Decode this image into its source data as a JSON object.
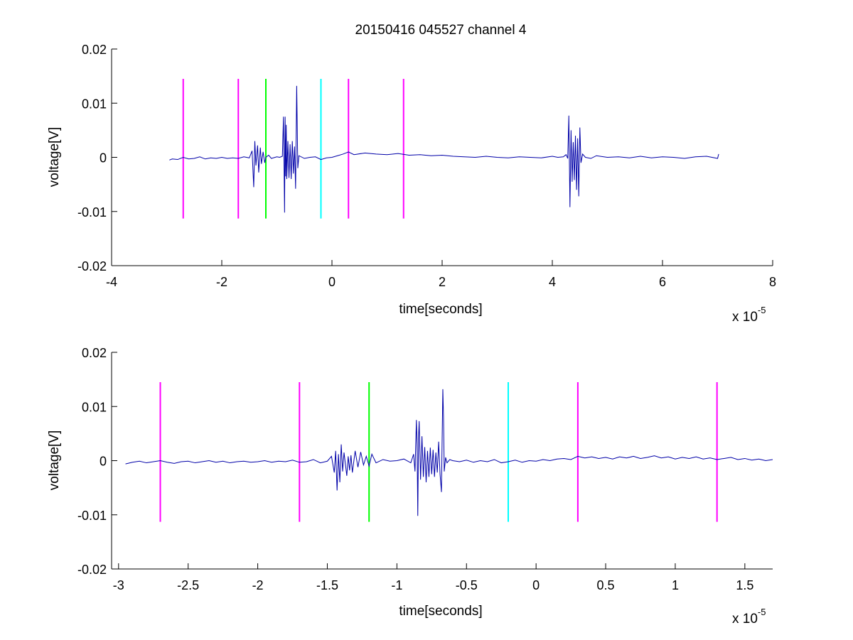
{
  "figure": {
    "title": "20150416 045527 channel 4"
  },
  "chart_data": [
    {
      "type": "line",
      "title": "20150416 045527 channel 4",
      "xlabel": "time[seconds]",
      "ylabel": "voltage[V]",
      "x_exponent_label": "x 10",
      "x_exponent": "-5",
      "xlim": [
        -4,
        8
      ],
      "ylim": [
        -0.02,
        0.02
      ],
      "x_unit_scale": "1e-5",
      "xticks": [
        -4,
        -2,
        0,
        2,
        4,
        6,
        8
      ],
      "xtick_labels": [
        "-4",
        "-2",
        "0",
        "2",
        "4",
        "6",
        "8"
      ],
      "yticks": [
        0.02,
        0.01,
        0,
        -0.01,
        -0.02
      ],
      "ytick_labels": [
        "0.02",
        "0.01",
        "0",
        "-0.01",
        "-0.02"
      ],
      "series": [
        {
          "color": "#0000a8",
          "x": [
            -2.95,
            -2.9,
            -2.8,
            -2.7,
            -2.6,
            -2.5,
            -2.4,
            -2.3,
            -2.2,
            -2.1,
            -2.0,
            -1.9,
            -1.8,
            -1.7,
            -1.6,
            -1.5,
            -1.45,
            -1.42,
            -1.4,
            -1.38,
            -1.35,
            -1.33,
            -1.3,
            -1.28,
            -1.25,
            -1.22,
            -1.2,
            -1.15,
            -1.1,
            -1.0,
            -0.95,
            -0.9,
            -0.88,
            -0.86,
            -0.85,
            -0.84,
            -0.83,
            -0.82,
            -0.8,
            -0.78,
            -0.76,
            -0.74,
            -0.72,
            -0.7,
            -0.68,
            -0.66,
            -0.64,
            -0.62,
            -0.6,
            -0.5,
            -0.4,
            -0.3,
            -0.2,
            -0.1,
            0.0,
            0.1,
            0.2,
            0.3,
            0.4,
            0.6,
            0.8,
            1.0,
            1.2,
            1.4,
            1.6,
            1.8,
            2.0,
            2.2,
            2.4,
            2.6,
            2.8,
            3.0,
            3.2,
            3.4,
            3.6,
            3.8,
            4.0,
            4.1,
            4.2,
            4.25,
            4.28,
            4.3,
            4.32,
            4.34,
            4.36,
            4.38,
            4.4,
            4.42,
            4.44,
            4.46,
            4.48,
            4.5,
            4.52,
            4.55,
            4.6,
            4.7,
            4.8,
            5.0,
            5.2,
            5.4,
            5.6,
            5.8,
            6.0,
            6.2,
            6.4,
            6.6,
            6.8,
            7.0,
            7.02
          ],
          "y": [
            -0.0005,
            -0.0003,
            -0.0004,
            0.0,
            -0.0003,
            -0.0002,
            0.0001,
            -0.0003,
            -0.0001,
            -0.0002,
            0.0,
            -0.0002,
            -0.0001,
            -0.0002,
            0.0001,
            -0.0001,
            0.0012,
            -0.0055,
            0.003,
            -0.0015,
            0.0022,
            -0.0028,
            0.0018,
            -0.0012,
            0.001,
            -0.001,
            0.0,
            0.0004,
            -0.0002,
            0.0001,
            0.0,
            0.0002,
            0.0075,
            -0.0102,
            0.0075,
            -0.0035,
            0.006,
            -0.004,
            0.003,
            -0.0038,
            0.0024,
            -0.004,
            0.003,
            -0.003,
            0.002,
            -0.0058,
            0.0132,
            -0.002,
            0.0003,
            -0.0002,
            0.0,
            0.0001,
            -0.0004,
            -0.0001,
            0.0,
            0.0003,
            0.0006,
            0.001,
            0.0005,
            0.0008,
            0.0006,
            0.0005,
            0.0007,
            0.0004,
            0.0005,
            0.0003,
            0.0004,
            0.0002,
            0.0001,
            0.0,
            0.0002,
            0.0,
            -0.0001,
            0.0001,
            0.0,
            -0.0001,
            0.0002,
            0.0,
            0.0001,
            0.0005,
            -0.0002,
            0.0077,
            -0.0092,
            0.005,
            -0.0045,
            0.0028,
            -0.0042,
            0.004,
            -0.006,
            0.0035,
            -0.0072,
            0.0055,
            -0.001,
            0.0006,
            0.0,
            -0.0002,
            0.0003,
            0.0,
            0.0001,
            -0.0001,
            0.0002,
            -0.0001,
            0.0001,
            0.0,
            -0.0002,
            0.0001,
            0.0002,
            -0.0002,
            0.0006
          ]
        }
      ],
      "vlines": [
        {
          "x": -2.7,
          "color": "#ff00ff"
        },
        {
          "x": -1.7,
          "color": "#ff00ff"
        },
        {
          "x": -1.2,
          "color": "#00ff00"
        },
        {
          "x": -0.2,
          "color": "#00ffff"
        },
        {
          "x": 0.3,
          "color": "#ff00ff"
        },
        {
          "x": 1.3,
          "color": "#ff00ff"
        }
      ],
      "vline_range": [
        -0.0113,
        0.0145
      ]
    },
    {
      "type": "line",
      "title": "",
      "xlabel": "time[seconds]",
      "ylabel": "voltage[V]",
      "x_exponent_label": "x 10",
      "x_exponent": "-5",
      "xlim": [
        -3.05,
        1.7
      ],
      "ylim": [
        -0.02,
        0.02
      ],
      "x_unit_scale": "1e-5",
      "xticks": [
        -3,
        -2.5,
        -2,
        -1.5,
        -1,
        -0.5,
        0,
        0.5,
        1,
        1.5
      ],
      "xtick_labels": [
        "-3",
        "-2.5",
        "-2",
        "-1.5",
        "-1",
        "-0.5",
        "0",
        "0.5",
        "1",
        "1.5"
      ],
      "yticks": [
        0.02,
        0.01,
        0,
        -0.01,
        -0.02
      ],
      "ytick_labels": [
        "0.02",
        "0.01",
        "0",
        "-0.01",
        "-0.02"
      ],
      "series": [
        {
          "color": "#0000a8",
          "x": [
            -2.95,
            -2.9,
            -2.85,
            -2.8,
            -2.75,
            -2.7,
            -2.65,
            -2.6,
            -2.55,
            -2.5,
            -2.45,
            -2.4,
            -2.35,
            -2.3,
            -2.25,
            -2.2,
            -2.15,
            -2.1,
            -2.05,
            -2.0,
            -1.95,
            -1.9,
            -1.85,
            -1.8,
            -1.75,
            -1.7,
            -1.65,
            -1.6,
            -1.55,
            -1.5,
            -1.47,
            -1.45,
            -1.44,
            -1.43,
            -1.42,
            -1.41,
            -1.4,
            -1.39,
            -1.38,
            -1.36,
            -1.35,
            -1.34,
            -1.33,
            -1.32,
            -1.3,
            -1.28,
            -1.26,
            -1.24,
            -1.22,
            -1.2,
            -1.18,
            -1.15,
            -1.1,
            -1.05,
            -1.0,
            -0.95,
            -0.9,
            -0.88,
            -0.87,
            -0.86,
            -0.855,
            -0.85,
            -0.845,
            -0.84,
            -0.83,
            -0.82,
            -0.81,
            -0.8,
            -0.79,
            -0.78,
            -0.77,
            -0.76,
            -0.75,
            -0.74,
            -0.73,
            -0.72,
            -0.71,
            -0.7,
            -0.69,
            -0.68,
            -0.675,
            -0.67,
            -0.665,
            -0.66,
            -0.65,
            -0.64,
            -0.62,
            -0.6,
            -0.55,
            -0.5,
            -0.45,
            -0.4,
            -0.35,
            -0.3,
            -0.25,
            -0.2,
            -0.15,
            -0.1,
            -0.05,
            0.0,
            0.05,
            0.1,
            0.15,
            0.2,
            0.25,
            0.3,
            0.35,
            0.4,
            0.45,
            0.5,
            0.55,
            0.6,
            0.65,
            0.7,
            0.75,
            0.8,
            0.85,
            0.9,
            0.95,
            1.0,
            1.05,
            1.1,
            1.15,
            1.2,
            1.25,
            1.3,
            1.35,
            1.4,
            1.45,
            1.5,
            1.55,
            1.6,
            1.65,
            1.7
          ],
          "y": [
            -0.0006,
            -0.0003,
            -0.0001,
            -0.0004,
            -0.0002,
            0.0,
            -0.0003,
            -0.0005,
            -0.0002,
            -0.0001,
            -0.0004,
            -0.0002,
            0.0,
            -0.0003,
            -0.0001,
            -0.0004,
            -0.0002,
            -0.0001,
            -0.0003,
            -0.0002,
            0.0,
            -0.0003,
            -0.0001,
            -0.0002,
            0.0001,
            -0.0003,
            -0.0002,
            0.0002,
            -0.0004,
            -0.0001,
            0.0008,
            -0.0022,
            0.0018,
            -0.0055,
            0.0012,
            -0.004,
            0.003,
            -0.002,
            0.0015,
            -0.0028,
            0.0008,
            -0.0018,
            0.001,
            -0.0022,
            0.0018,
            -0.0012,
            0.0016,
            -0.0008,
            0.0008,
            -0.001,
            0.0012,
            -0.0004,
            0.0002,
            -0.0001,
            0.0,
            0.0003,
            -0.0004,
            0.0012,
            -0.002,
            0.0075,
            0.003,
            -0.0102,
            0.004,
            0.0073,
            -0.0035,
            0.0045,
            -0.003,
            0.0025,
            -0.004,
            0.0018,
            -0.003,
            0.0024,
            -0.0025,
            0.002,
            -0.003,
            0.0015,
            -0.0022,
            0.0035,
            -0.0025,
            -0.0058,
            0.004,
            0.0132,
            0.008,
            -0.002,
            0.0006,
            -0.0004,
            0.0002,
            0.0,
            -0.0002,
            0.0001,
            -0.0003,
            0.0,
            -0.0002,
            0.0002,
            -0.0004,
            -0.0002,
            0.0001,
            -0.0003,
            0.0,
            -0.0001,
            0.0002,
            0.0,
            0.0003,
            0.0004,
            0.0002,
            0.0008,
            0.0005,
            0.0007,
            0.0004,
            0.0006,
            0.0003,
            0.0007,
            0.0005,
            0.0008,
            0.0004,
            0.0006,
            0.0009,
            0.0005,
            0.0007,
            0.0003,
            0.0006,
            0.0004,
            0.0007,
            0.0003,
            0.0005,
            0.0002,
            0.0004,
            0.0006,
            0.0002,
            0.0004,
            0.0001,
            0.0003,
            0.0,
            0.0002
          ]
        }
      ],
      "vlines": [
        {
          "x": -2.7,
          "color": "#ff00ff"
        },
        {
          "x": -1.7,
          "color": "#ff00ff"
        },
        {
          "x": -1.2,
          "color": "#00ff00"
        },
        {
          "x": -0.2,
          "color": "#00ffff"
        },
        {
          "x": 0.3,
          "color": "#ff00ff"
        },
        {
          "x": 1.3,
          "color": "#ff00ff"
        }
      ],
      "vline_range": [
        -0.0113,
        0.0145
      ]
    }
  ]
}
